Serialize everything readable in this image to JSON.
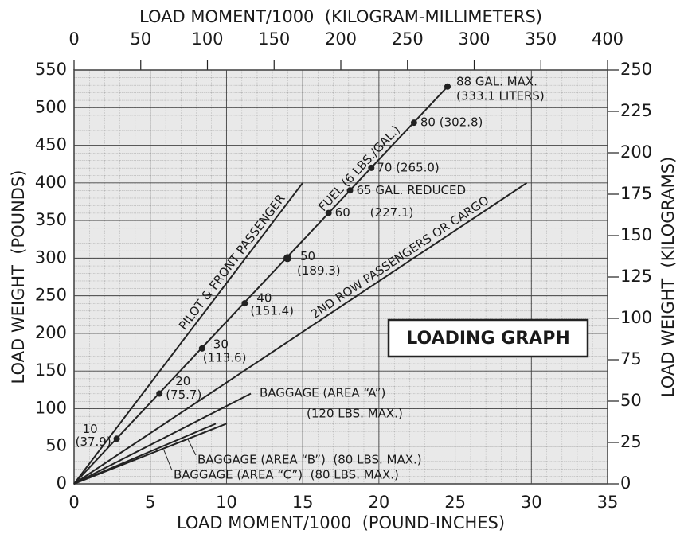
{
  "chart_data": {
    "type": "line",
    "xlabel": "LOAD MOMENT/1000  (POUND-INCHES)",
    "x2label": "LOAD MOMENT/1000  (KILOGRAM-MILLIMETERS)",
    "ylabel": "LOAD WEIGHT  (POUNDS)",
    "y2label": "LOAD WEIGHT  (KILOGRAMS)",
    "box_label": "LOADING GRAPH",
    "xlim": [
      0,
      35
    ],
    "xticks": [
      0,
      5,
      10,
      15,
      20,
      25,
      30,
      35
    ],
    "x2lim": [
      0,
      400
    ],
    "x2ticks": [
      0,
      50,
      100,
      150,
      200,
      250,
      300,
      350,
      400
    ],
    "ylim": [
      0,
      550
    ],
    "yticks": [
      0,
      50,
      100,
      150,
      200,
      250,
      300,
      350,
      400,
      450,
      500,
      550
    ],
    "y2lim": [
      0,
      250
    ],
    "y2ticks": [
      0,
      25,
      50,
      75,
      100,
      125,
      150,
      175,
      200,
      225,
      250
    ],
    "grid": true,
    "color": "#222222",
    "series": [
      {
        "name": "PILOT & FRONT PASSENGER",
        "x": [
          0,
          15.0
        ],
        "values": [
          0,
          400
        ]
      },
      {
        "name": "FUEL (6 LBS./GAL.)",
        "x": [
          0,
          24.5
        ],
        "values": [
          0,
          528
        ]
      },
      {
        "name": "2ND ROW PASSENGERS OR CARGO",
        "x": [
          0,
          29.7
        ],
        "values": [
          0,
          400
        ]
      },
      {
        "name": "BAGGAGE (AREA “A”)",
        "sublabel": "(120 LBS. MAX.)",
        "x": [
          0,
          11.6
        ],
        "values": [
          0,
          120
        ]
      },
      {
        "name": "BAGGAGE (AREA “B”)  (80 LBS. MAX.)",
        "x": [
          0,
          9.3
        ],
        "values": [
          0,
          80
        ]
      },
      {
        "name": "BAGGAGE (AREA “C”)  (80 LBS. MAX.)",
        "x": [
          0,
          10.0
        ],
        "values": [
          0,
          80
        ]
      }
    ],
    "fuel_points": {
      "x": [
        2.8,
        5.6,
        8.4,
        11.2,
        14.0,
        16.7,
        18.1,
        19.5,
        22.3,
        24.5
      ],
      "values": [
        60,
        120,
        180,
        240,
        300,
        360,
        390,
        420,
        480,
        528
      ],
      "labels": [
        [
          "10",
          "(37.9)"
        ],
        [
          "20",
          "(75.7)"
        ],
        [
          "30",
          "(113.6)"
        ],
        [
          "40",
          "(151.4)"
        ],
        [
          "50",
          "(189.3)"
        ],
        [
          "60",
          "(227.1)"
        ],
        [
          "65 GAL. REDUCED"
        ],
        [
          "70 (265.0)"
        ],
        [
          "80 (302.8)"
        ],
        [
          "88 GAL. MAX.",
          "(333.1 LITERS)"
        ]
      ]
    }
  }
}
